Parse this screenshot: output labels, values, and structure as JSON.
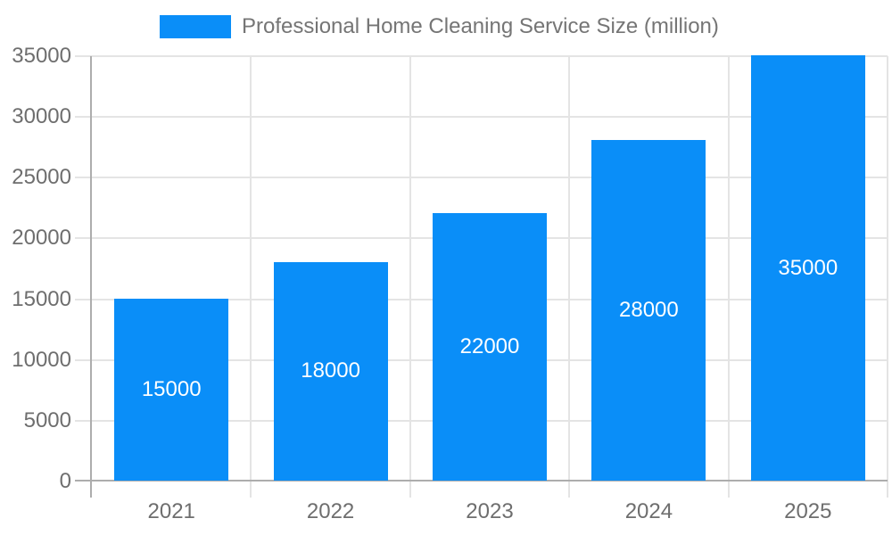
{
  "legend": {
    "label": "Professional Home Cleaning Service Size (million)"
  },
  "chart_data": {
    "type": "bar",
    "title": "Professional Home Cleaning Service Size (million)",
    "categories": [
      "2021",
      "2022",
      "2023",
      "2024",
      "2025"
    ],
    "values": [
      15000,
      18000,
      22000,
      28000,
      35000
    ],
    "bar_labels": [
      "15000",
      "18000",
      "22000",
      "28000",
      "35000"
    ],
    "series": [
      {
        "name": "Professional Home Cleaning Service Size (million)",
        "values": [
          15000,
          18000,
          22000,
          28000,
          35000
        ]
      }
    ],
    "xlabel": "",
    "ylabel": "",
    "ylim": [
      0,
      35000
    ],
    "ytick_step": 5000,
    "ytick_labels": [
      "0",
      "5000",
      "10000",
      "15000",
      "20000",
      "25000",
      "30000",
      "35000"
    ],
    "grid": true,
    "legend_position": "top",
    "colors": {
      "bar": "#0a8ef8",
      "grid": "#e4e4e4",
      "axis": "#adadad",
      "axis_text": "#6e6e6e",
      "legend_text": "#757575",
      "bar_label_text": "#ffffff",
      "background": "#ffffff"
    }
  }
}
